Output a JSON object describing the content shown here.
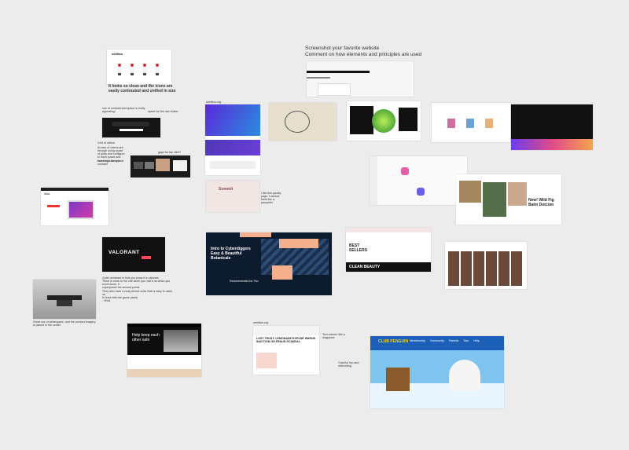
{
  "board": {
    "heading_line1": "Screenshot your favorite website",
    "heading_line2": "Comment on how elements and principles are used"
  },
  "notes": {
    "icons_comment": "It looks so clean and the icons are easily contrasted and unified in size",
    "whitespace_comment": "use of contrast and space is really appealing!",
    "search_comment": "space for the nav button",
    "grid_comment": "Grid of videos",
    "grid_text": "Arrows of videos are through using space of grids and configure to each space and same size for appeal",
    "inverted_comment": "Inverting colors for contrast",
    "gaps_comment": "gaps for tap click?",
    "valorant_comment": "Quite dominant in that you know it is valorant.\nThere is more to the site when you visit it as when you scroll down, it\nsuperposes the second portal.\nThey also have a neat pinned order that is easy to catch on\nIn lines with the game (dark)\n- Vivid.",
    "drone_caption": "Great use of whitespace, and the product imagery is placed in the center",
    "tangram_comment": "I like this quality page, it almost feels like a pamphlet",
    "news_comment": "Text column like a magazine",
    "penguin_comment": "Colorful, fun and welcoming"
  },
  "cards": {
    "icons_title": "webflow",
    "valorant": "VALORANT",
    "help_headline": "Help keep each other safe",
    "unsplash_title": "Summit",
    "chrome_title": "Intro to Cyberdiggers Easy & Beautiful Botanicals",
    "chrome_recommended": "Recommended for You",
    "beauty_title": "BEST SELLERS",
    "beauty_footer": "CLEAN BEAUTY",
    "news_headline": "LOST TRUST: LEMONADE EXPOSÉ WARNS INACTION ON FRAUD SCANDAL",
    "club_title": "CLUB PENGUIN",
    "club_nav": [
      "Membership",
      "Community",
      "Parents",
      "Tour",
      "Help"
    ],
    "wild_headline": "New! Wild Fig Balm Dotcom",
    "site_name": "webflow.org",
    "apple_nav": "iMac"
  },
  "colors": {
    "board": "#ececec",
    "sticky": "#f4b08c",
    "valorant_red": "#ff4655",
    "club_blue": "#1b5fb7",
    "purple": "#6b3fd6"
  }
}
